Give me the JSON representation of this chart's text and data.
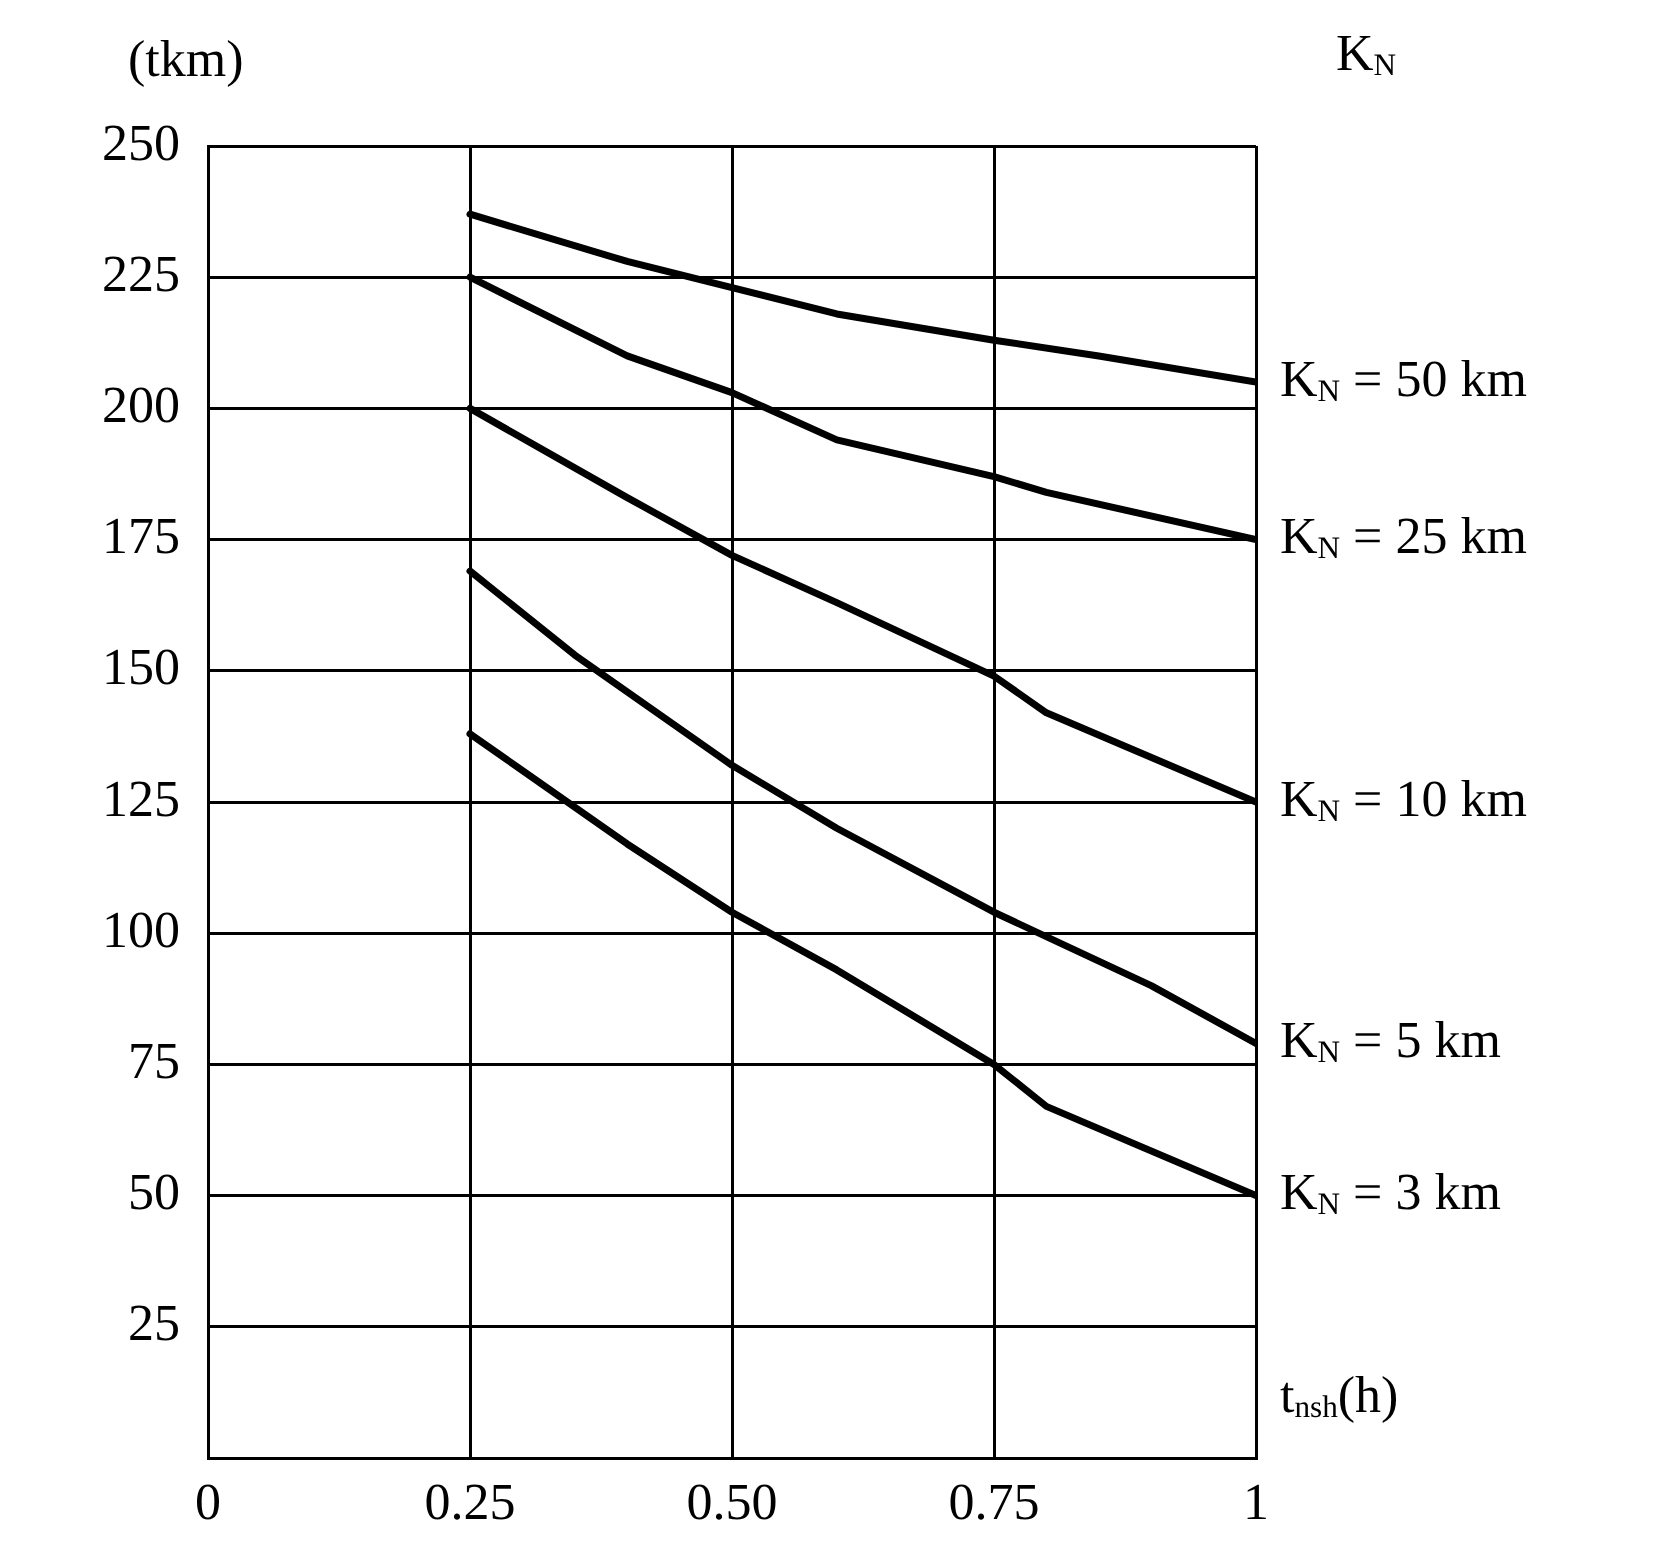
{
  "chart_data": {
    "type": "line",
    "ylabel": "(tkm)",
    "xlabel": "t$_{nsh}$(h)",
    "legend_title": "K$_{N}$",
    "legend": false,
    "grid": true,
    "marker": "none",
    "line_style": "solid",
    "xlim": [
      0,
      1
    ],
    "xticks": [
      0,
      0.25,
      {
        "value": 0.5,
        "label": "0.50"
      },
      0.75,
      1
    ],
    "ylim": [
      0,
      250
    ],
    "yticks": [
      {
        "value": 0,
        "label": null
      },
      25,
      50,
      75,
      100,
      125,
      150,
      175,
      200,
      225,
      250
    ],
    "series": [
      {
        "name": "K$_{N}$ = 50 km",
        "color": "#000000",
        "x": [
          0.25,
          0.4,
          0.5,
          0.6,
          0.75,
          0.85,
          1
        ],
        "values": [
          237,
          228,
          223,
          218,
          213,
          210,
          205
        ]
      },
      {
        "name": "K$_{N}$ = 25 km",
        "color": "#000000",
        "x": [
          0.25,
          0.4,
          0.5,
          0.6,
          0.75,
          0.8,
          1
        ],
        "values": [
          225,
          210,
          203,
          194,
          187,
          184,
          175
        ]
      },
      {
        "name": "K$_{N}$ = 10 km",
        "color": "#000000",
        "x": [
          0.25,
          0.4,
          0.5,
          0.6,
          0.75,
          0.8,
          1
        ],
        "values": [
          200,
          183,
          172,
          163,
          149,
          142,
          125
        ]
      },
      {
        "name": "K$_{N}$ = 5 km",
        "color": "#000000",
        "x": [
          0.25,
          0.35,
          0.5,
          0.6,
          0.75,
          0.9,
          1
        ],
        "values": [
          169,
          153,
          132,
          120,
          104,
          90,
          79
        ]
      },
      {
        "name": "K$_{N}$ = 3 km",
        "color": "#000000",
        "x": [
          0.25,
          0.4,
          0.5,
          0.6,
          0.75,
          0.8,
          1
        ],
        "values": [
          138,
          117,
          104,
          93,
          75,
          67,
          50
        ]
      }
    ]
  }
}
